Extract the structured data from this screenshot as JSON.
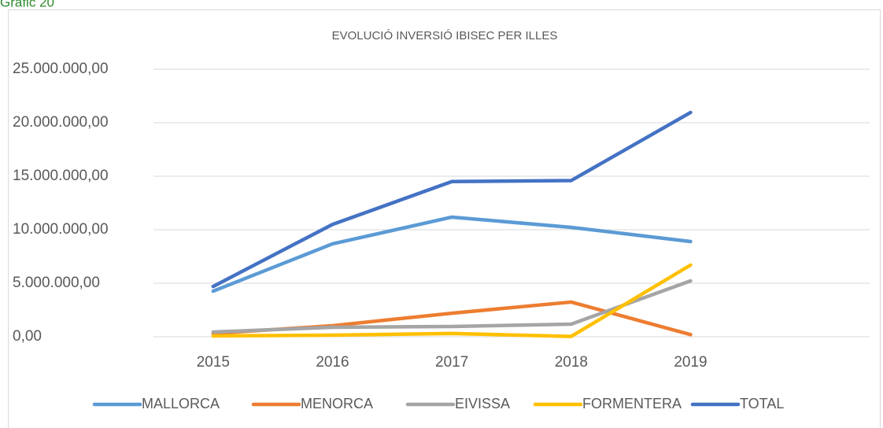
{
  "figure_label": "Gràfic 20",
  "chart_data": {
    "type": "line",
    "title": "EVOLUCIÓ INVERSIÓ IBISEC PER ILLES",
    "categories": [
      "2015",
      "2016",
      "2017",
      "2018",
      "2019",
      null
    ],
    "series": [
      {
        "name": "MALLORCA",
        "color": "#5b9bd5",
        "values": [
          4260000,
          8680000,
          11180000,
          10220000,
          8900000,
          null
        ]
      },
      {
        "name": "MENORCA",
        "color": "#ed7d31",
        "values": [
          300000,
          1030000,
          2200000,
          3240000,
          200000,
          null
        ]
      },
      {
        "name": "EIVISSA",
        "color": "#a5a5a5",
        "values": [
          440000,
          880000,
          960000,
          1180000,
          5220000,
          null
        ]
      },
      {
        "name": "FORMENTERA",
        "color": "#ffc000",
        "values": [
          70000,
          150000,
          300000,
          30000,
          6700000,
          null
        ]
      },
      {
        "name": "TOTAL",
        "color": "#4472c4",
        "values": [
          4700000,
          10500000,
          14500000,
          14600000,
          20960000,
          null
        ]
      }
    ],
    "ylim": [
      0,
      25000000
    ],
    "yticks": [
      {
        "value": 0,
        "label": "0,00"
      },
      {
        "value": 5000000,
        "label": "5.000.000,00"
      },
      {
        "value": 10000000,
        "label": "10.000.000,00"
      },
      {
        "value": 15000000,
        "label": "15.000.000,00"
      },
      {
        "value": 20000000,
        "label": "20.000.000,00"
      },
      {
        "value": 25000000,
        "label": "25.000.000,00"
      }
    ],
    "grid": true,
    "legend": "bottom"
  }
}
